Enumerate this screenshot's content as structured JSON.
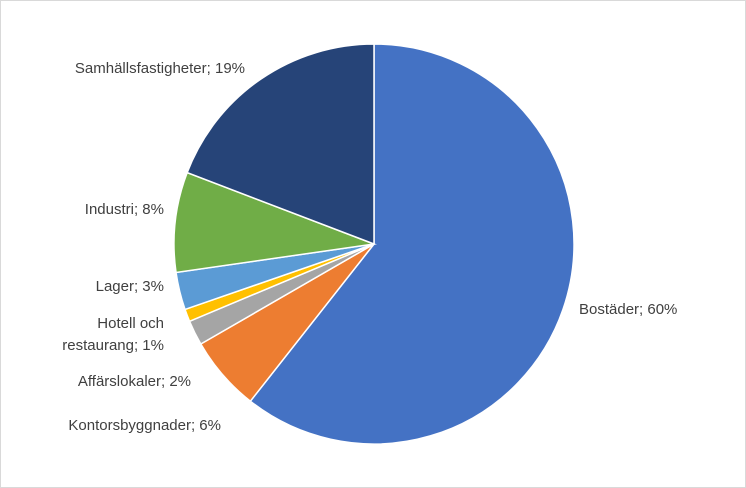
{
  "chart_data": {
    "type": "pie",
    "title": "",
    "start_angle_deg": 0,
    "direction": "clockwise",
    "legend": "none",
    "slices": [
      {
        "label": "Bostäder",
        "value": 60,
        "display": "Bostäder; 60%",
        "color": "#4472C4"
      },
      {
        "label": "Kontorsbyggnader",
        "value": 6,
        "display": "Kontorsbyggnader; 6%",
        "color": "#ED7D31"
      },
      {
        "label": "Affärslokaler",
        "value": 2,
        "display": "Affärslokaler; 2%",
        "color": "#A5A5A5"
      },
      {
        "label": "Hotell och restaurang",
        "value": 1,
        "display": [
          "Hotell och",
          "restaurang; 1%"
        ],
        "color": "#FFC000"
      },
      {
        "label": "Lager",
        "value": 3,
        "display": "Lager; 3%",
        "color": "#5B9BD5"
      },
      {
        "label": "Industri",
        "value": 8,
        "display": "Industri; 8%",
        "color": "#70AD47"
      },
      {
        "label": "Samhällsfastigheter",
        "value": 19,
        "display": "Samhällsfastigheter; 19%",
        "color": "#264478"
      }
    ]
  }
}
